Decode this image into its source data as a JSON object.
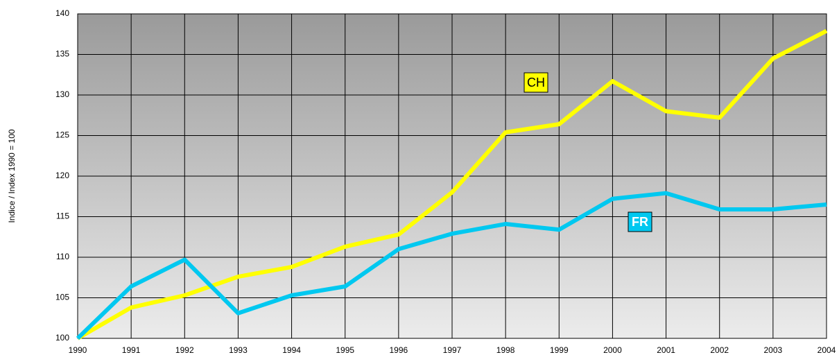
{
  "chart_data": {
    "type": "line",
    "y_label": "Indice / Index 1990 = 100",
    "x": [
      1990,
      1991,
      1992,
      1993,
      1994,
      1995,
      1996,
      1997,
      1998,
      1999,
      2000,
      2001,
      2002,
      2003,
      2004
    ],
    "xlim": [
      1990,
      2004
    ],
    "xticks": [
      1990,
      1991,
      1992,
      1993,
      1994,
      1995,
      1996,
      1997,
      1998,
      1999,
      2000,
      2001,
      2002,
      2003,
      2004
    ],
    "ylim": [
      100,
      140
    ],
    "yticks": [
      100,
      105,
      110,
      115,
      120,
      125,
      130,
      135,
      140
    ],
    "grid": true,
    "series": [
      {
        "name": "CH",
        "color": "#ffff00",
        "values": [
          100,
          103.8,
          105.3,
          107.6,
          108.8,
          111.3,
          112.8,
          118,
          125.4,
          126.4,
          131.7,
          128,
          127.2,
          134.5,
          137.9
        ]
      },
      {
        "name": "FR",
        "color": "#00c8f0",
        "values": [
          100,
          106.4,
          109.7,
          103.1,
          105.3,
          106.4,
          111,
          112.9,
          114.1,
          113.4,
          117.2,
          117.9,
          115.9,
          115.9,
          116.5
        ]
      }
    ]
  }
}
